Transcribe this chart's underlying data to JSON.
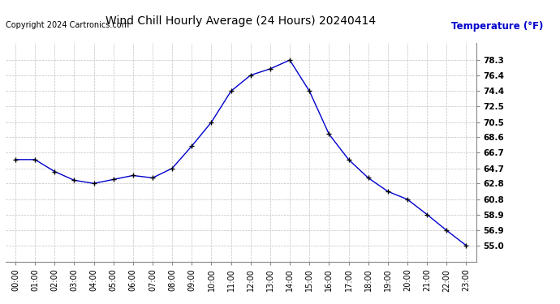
{
  "title": "Wind Chill Hourly Average (24 Hours) 20240414",
  "ylabel": "Temperature (°F)",
  "copyright": "Copyright 2024 Cartronics.com",
  "hours": [
    "00:00",
    "01:00",
    "02:00",
    "03:00",
    "04:00",
    "05:00",
    "06:00",
    "07:00",
    "08:00",
    "09:00",
    "10:00",
    "11:00",
    "12:00",
    "13:00",
    "14:00",
    "15:00",
    "16:00",
    "17:00",
    "18:00",
    "19:00",
    "20:00",
    "21:00",
    "22:00",
    "23:00"
  ],
  "values": [
    65.8,
    65.8,
    64.3,
    63.2,
    62.8,
    63.3,
    63.8,
    63.5,
    64.7,
    67.5,
    70.5,
    74.4,
    76.4,
    77.2,
    78.3,
    74.4,
    69.0,
    65.8,
    63.5,
    61.8,
    60.8,
    58.9,
    56.9,
    55.0
  ],
  "line_color": "#0000cc",
  "marker_color": "#000000",
  "title_color": "#000000",
  "ylabel_color": "#0000cc",
  "copyright_color": "#000000",
  "bg_color": "#ffffff",
  "grid_color": "#bbbbbb",
  "ylim_min": 53.0,
  "ylim_max": 80.5,
  "yticks": [
    55.0,
    56.9,
    58.9,
    60.8,
    62.8,
    64.7,
    66.7,
    68.6,
    70.5,
    72.5,
    74.4,
    76.4,
    78.3
  ]
}
